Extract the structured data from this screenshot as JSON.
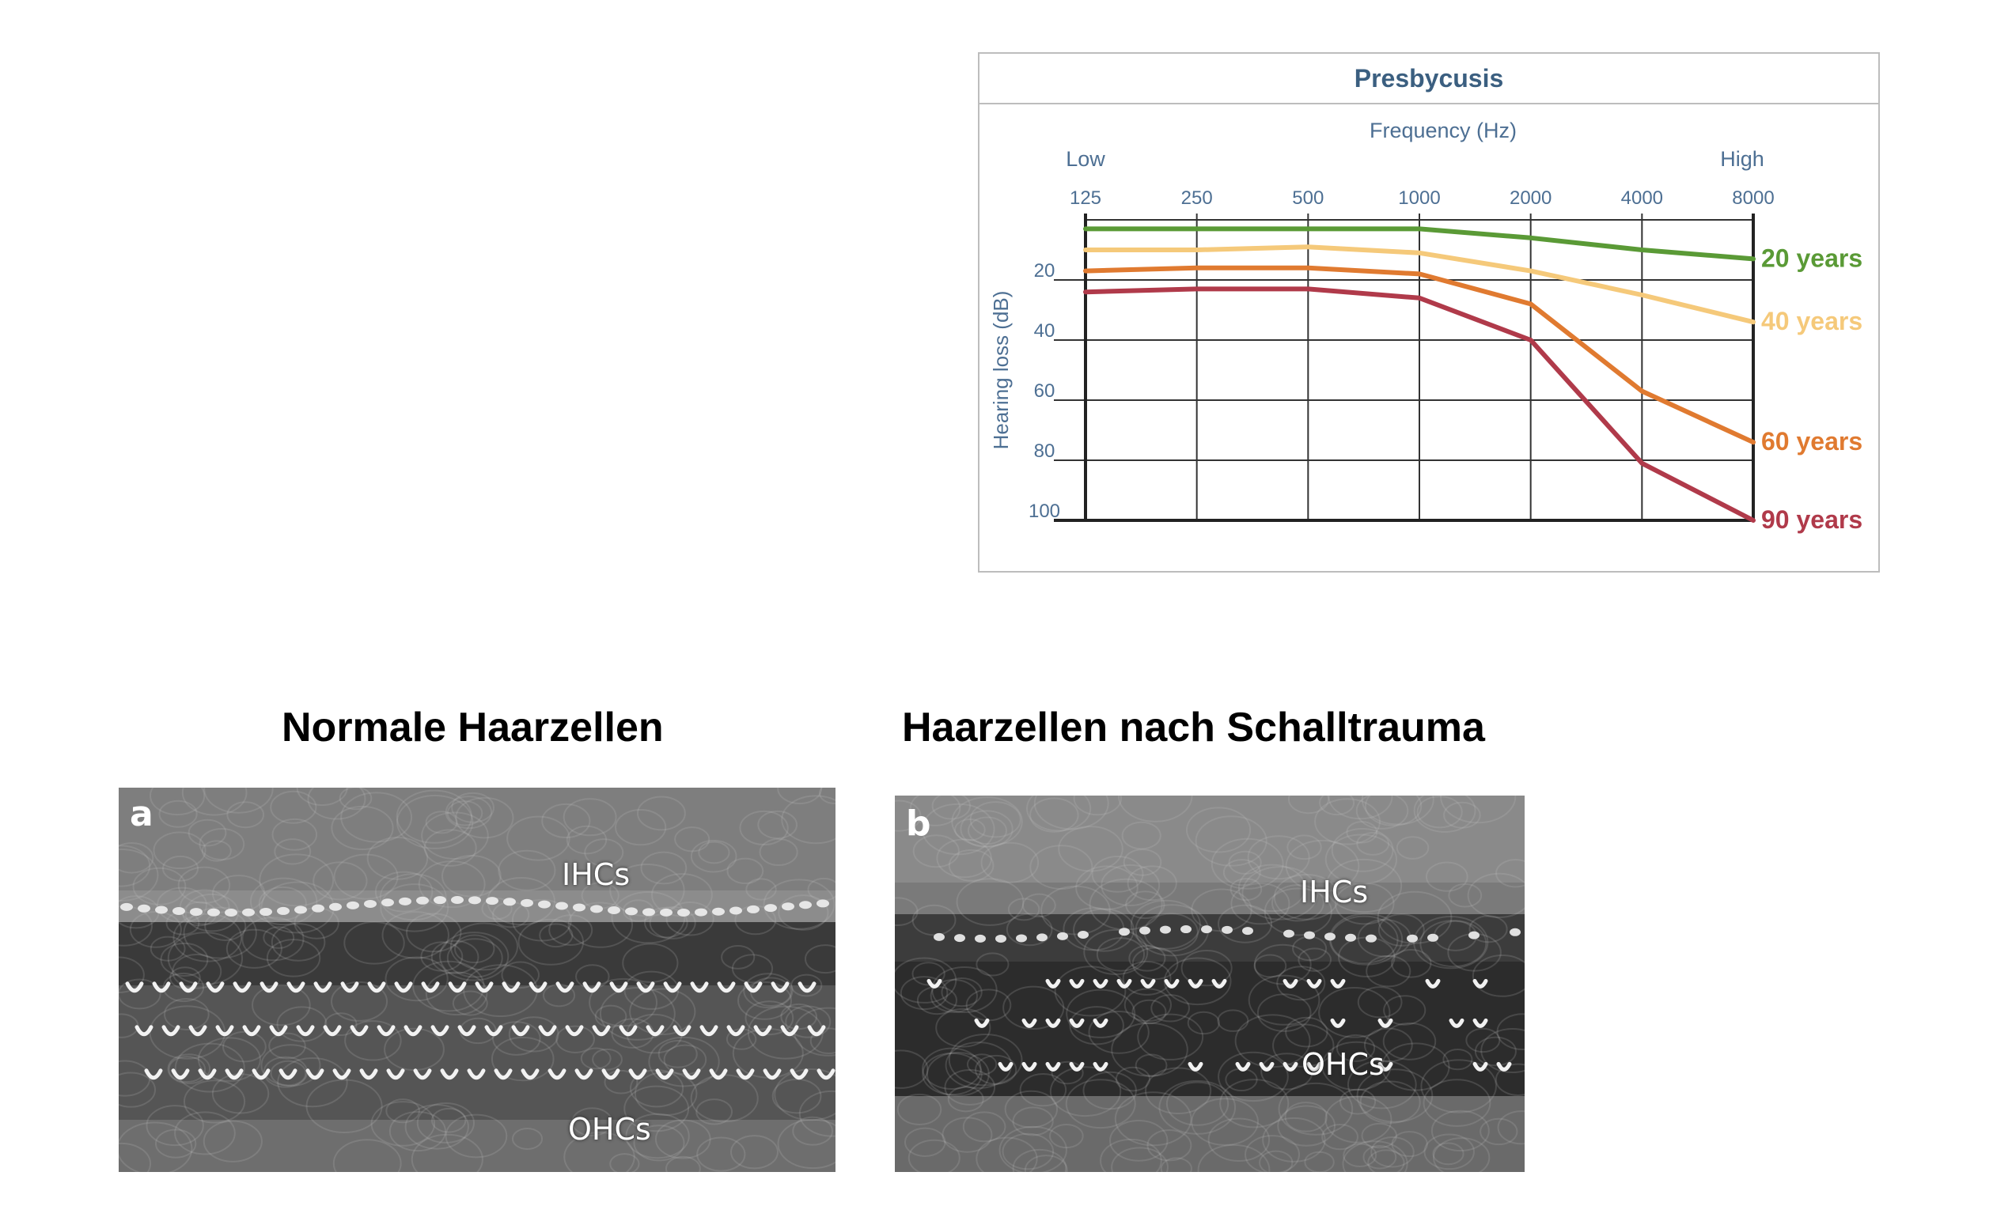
{
  "faded_background_lines": [
    "",
    "",
    "",
    "",
    "",
    "",
    "",
    ""
  ],
  "chart_data": {
    "type": "line",
    "title": "Presbycusis",
    "x_axis_label": "Frequency (Hz)",
    "x_low_label": "Low",
    "x_high_label": "High",
    "x": [
      125,
      250,
      500,
      1000,
      2000,
      4000,
      8000
    ],
    "x_scale": "log",
    "x_axis_position": "top",
    "y_axis_label": "Hearing loss (dB)",
    "y_ticks": [
      20,
      40,
      60,
      80,
      100
    ],
    "ylim": [
      0,
      100
    ],
    "y_inverted": true,
    "grid": true,
    "legend": "labels at right end of lines",
    "series": [
      {
        "name": "20 years",
        "color": "#5a9a36",
        "values": [
          3,
          3,
          3,
          3,
          6,
          10,
          13
        ]
      },
      {
        "name": "40 years",
        "color": "#f5c97a",
        "values": [
          10,
          10,
          9,
          11,
          17,
          25,
          34
        ]
      },
      {
        "name": "60 years",
        "color": "#e07a30",
        "values": [
          17,
          16,
          16,
          18,
          28,
          57,
          74
        ]
      },
      {
        "name": "90 years",
        "color": "#b03a4a",
        "values": [
          24,
          23,
          23,
          26,
          40,
          81,
          100
        ]
      }
    ]
  },
  "captions": {
    "left": "Normale Haarzellen",
    "right": "Haarzellen nach Schalltrauma"
  },
  "micrographs": {
    "left": {
      "letter": "a",
      "ihc_label": "IHCs",
      "ohc_label": "OHCs"
    },
    "right": {
      "letter": "b",
      "ihc_label": "IHCs",
      "ohc_label": "OHCs"
    }
  }
}
